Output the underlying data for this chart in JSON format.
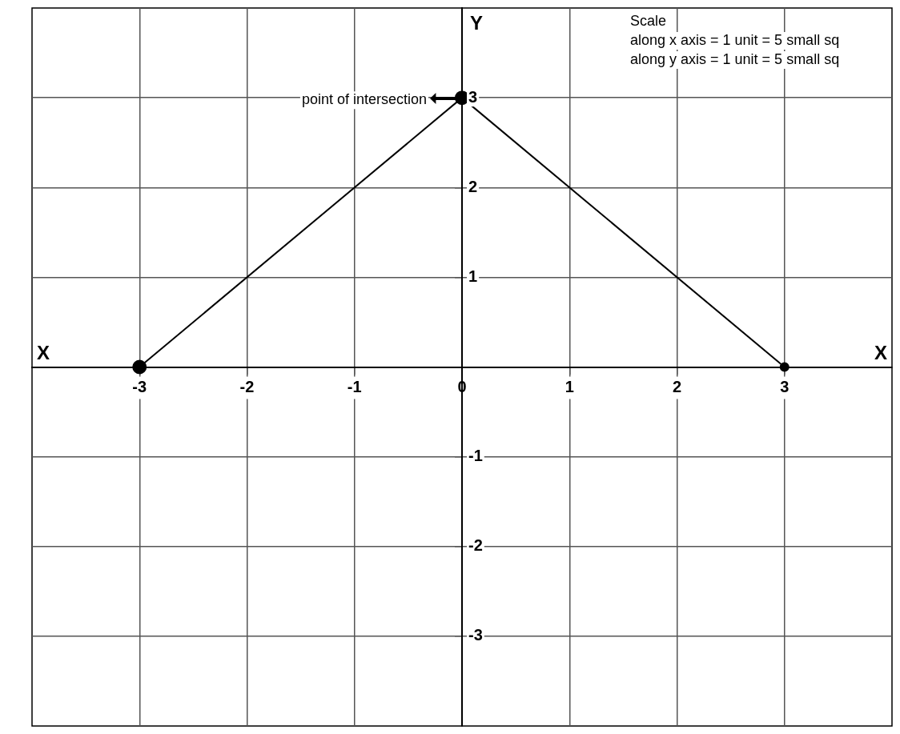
{
  "chart_data": {
    "type": "line",
    "xlabel": "X",
    "ylabel": "Y",
    "xlim": [
      -4,
      4
    ],
    "ylim": [
      -4,
      4
    ],
    "xticks": [
      -3,
      -2,
      -1,
      0,
      1,
      2,
      3
    ],
    "yticks": [
      -3,
      -2,
      -1,
      1,
      2,
      3
    ],
    "grid": true,
    "legend": false,
    "marker": "circle",
    "line_style": "solid",
    "series": [
      {
        "color": "#000000",
        "x": [
          -3,
          0
        ],
        "values": [
          0,
          3
        ]
      },
      {
        "color": "#000000",
        "x": [
          0,
          3
        ],
        "values": [
          3,
          0
        ]
      }
    ],
    "annotations": [
      "Scale",
      "along x axis = 1 unit = 5 small sq",
      "along y axis = 1 unit = 5 small sq",
      {
        "text": "point of intersection",
        "x": 0,
        "y": 3
      }
    ]
  }
}
